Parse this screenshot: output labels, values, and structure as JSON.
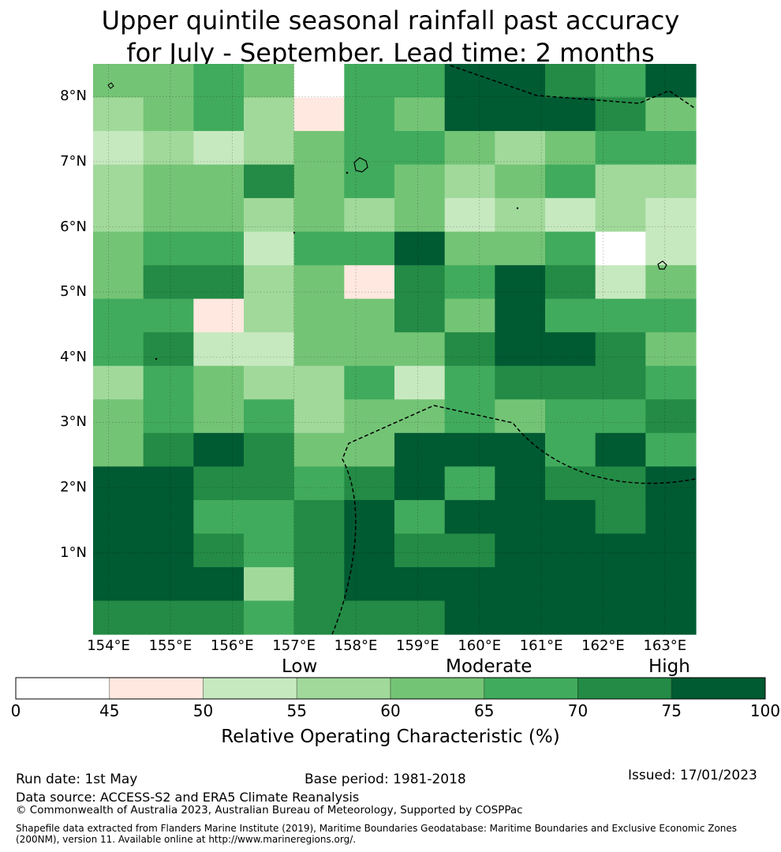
{
  "title": {
    "line1": "Upper quintile seasonal rainfall past accuracy",
    "line2": "for July - September. Lead time: 2 months"
  },
  "map": {
    "lon_range": [
      153.75,
      163.5
    ],
    "lat_range": [
      -0.25,
      8.5
    ],
    "lat_labels": [
      "8°N",
      "7°N",
      "6°N",
      "5°N",
      "4°N",
      "3°N",
      "2°N",
      "1°N"
    ],
    "lat_values": [
      8,
      7,
      6,
      5,
      4,
      3,
      2,
      1
    ],
    "lon_labels": [
      "154°E",
      "155°E",
      "156°E",
      "157°E",
      "158°E",
      "159°E",
      "160°E",
      "161°E",
      "162°E",
      "163°E"
    ],
    "lon_values": [
      154,
      155,
      156,
      157,
      158,
      159,
      160,
      161,
      162,
      163
    ],
    "grid_cols": 12,
    "grid_rows": 17,
    "cell_class_index": [
      [
        4,
        4,
        5,
        4,
        0,
        5,
        5,
        7,
        7,
        6,
        5,
        7
      ],
      [
        3,
        4,
        5,
        3,
        1,
        5,
        4,
        7,
        7,
        7,
        6,
        4
      ],
      [
        2,
        3,
        2,
        3,
        4,
        5,
        5,
        4,
        3,
        4,
        5,
        5
      ],
      [
        3,
        4,
        4,
        6,
        4,
        5,
        4,
        3,
        4,
        5,
        3,
        3
      ],
      [
        3,
        4,
        4,
        3,
        4,
        3,
        4,
        2,
        3,
        2,
        3,
        2
      ],
      [
        4,
        5,
        5,
        2,
        5,
        5,
        7,
        4,
        4,
        5,
        0,
        2
      ],
      [
        4,
        6,
        6,
        3,
        4,
        1,
        6,
        5,
        7,
        6,
        2,
        4
      ],
      [
        5,
        5,
        1,
        3,
        4,
        4,
        6,
        4,
        7,
        5,
        5,
        5
      ],
      [
        5,
        6,
        2,
        2,
        4,
        4,
        4,
        6,
        7,
        7,
        6,
        4
      ],
      [
        3,
        5,
        4,
        3,
        3,
        5,
        2,
        5,
        6,
        6,
        6,
        5
      ],
      [
        4,
        5,
        4,
        5,
        3,
        4,
        4,
        5,
        4,
        5,
        5,
        6
      ],
      [
        4,
        6,
        7,
        6,
        4,
        4,
        7,
        7,
        7,
        5,
        7,
        5
      ],
      [
        7,
        7,
        6,
        6,
        5,
        6,
        7,
        5,
        7,
        6,
        6,
        7
      ],
      [
        7,
        7,
        5,
        5,
        6,
        7,
        5,
        7,
        7,
        7,
        6,
        7
      ],
      [
        7,
        7,
        6,
        5,
        6,
        7,
        6,
        6,
        7,
        7,
        7,
        7
      ],
      [
        7,
        7,
        7,
        3,
        6,
        7,
        7,
        7,
        7,
        7,
        7,
        7
      ],
      [
        6,
        6,
        6,
        5,
        6,
        6,
        6,
        7,
        7,
        7,
        7,
        7
      ]
    ],
    "boundary_color": "#000000"
  },
  "colorbar": {
    "categories": [
      "Low",
      "Moderate",
      "High"
    ],
    "ticks": [
      "0",
      "45",
      "50",
      "55",
      "60",
      "65",
      "70",
      "75",
      "100"
    ],
    "colors": [
      "#ffffff",
      "#fee8df",
      "#c7e9c0",
      "#a1d99b",
      "#74c476",
      "#41ab5d",
      "#238b45",
      "#005a32"
    ],
    "label": "Relative Operating Characteristic (%)"
  },
  "footer": {
    "run_date": "Run date: 1st May",
    "base_period": "Base period: 1981-2018",
    "issued": "Issued: 17/01/2023",
    "data_source": "Data source: ACCESS-S2 and ERA5 Climate Reanalysis",
    "copyright": "© Commonwealth of Australia 2023, Australian Bureau of Meteorology, Supported by COSPPac",
    "shapefile_line1": "Shapefile data extracted from Flanders Marine Institute (2019), Maritime Boundaries Geodatabase: Maritime Boundaries and Exclusive Economic Zones",
    "shapefile_line2": "(200NM), version 11. Available online at http://www.marineregions.org/."
  }
}
